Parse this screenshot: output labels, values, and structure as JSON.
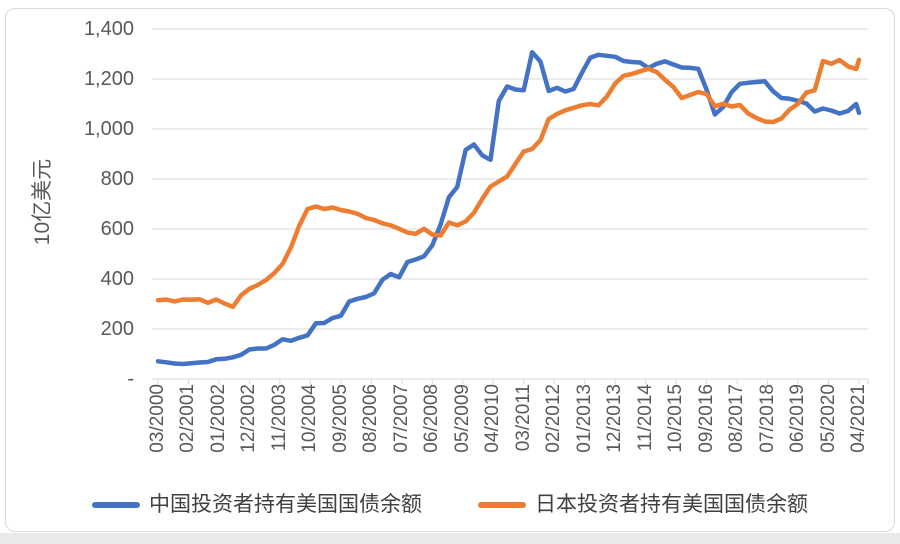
{
  "window": {
    "background": "#ffffff",
    "frame_border_color": "#d9d9d9",
    "bottom_strip_color": "#e9e9e9"
  },
  "chart_data": {
    "type": "line",
    "title": "",
    "xlabel": "",
    "ylabel": "10亿美元",
    "ylim": [
      0,
      1400
    ],
    "grid": true,
    "grid_color": "#d9d9d9",
    "axis_color": "#d9d9d9",
    "tick_label_color": "#595959",
    "legend_position": "bottom",
    "legend_text_color": "#404040",
    "y_ticks": [
      {
        "value": 0,
        "label": "-"
      },
      {
        "value": 200,
        "label": "200"
      },
      {
        "value": 400,
        "label": "400"
      },
      {
        "value": 600,
        "label": "600"
      },
      {
        "value": 800,
        "label": "800"
      },
      {
        "value": 1000,
        "label": "1,000"
      },
      {
        "value": 1200,
        "label": "1,200"
      },
      {
        "value": 1400,
        "label": "1,400"
      }
    ],
    "x_ticks": [
      {
        "month": 0,
        "label": "03/2000"
      },
      {
        "month": 11,
        "label": "02/2001"
      },
      {
        "month": 22,
        "label": "01/2002"
      },
      {
        "month": 33,
        "label": "12/2002"
      },
      {
        "month": 44,
        "label": "11/2003"
      },
      {
        "month": 55,
        "label": "10/2004"
      },
      {
        "month": 66,
        "label": "09/2005"
      },
      {
        "month": 77,
        "label": "08/2006"
      },
      {
        "month": 88,
        "label": "07/2007"
      },
      {
        "month": 99,
        "label": "06/2008"
      },
      {
        "month": 110,
        "label": "05/2009"
      },
      {
        "month": 121,
        "label": "04/2010"
      },
      {
        "month": 132,
        "label": "03/2011"
      },
      {
        "month": 143,
        "label": "02/2012"
      },
      {
        "month": 154,
        "label": "01/2013"
      },
      {
        "month": 165,
        "label": "12/2013"
      },
      {
        "month": 176,
        "label": "11/2014"
      },
      {
        "month": 187,
        "label": "10/2015"
      },
      {
        "month": 198,
        "label": "09/2016"
      },
      {
        "month": 209,
        "label": "08/2017"
      },
      {
        "month": 220,
        "label": "07/2018"
      },
      {
        "month": 231,
        "label": "06/2019"
      },
      {
        "month": 242,
        "label": "05/2020"
      },
      {
        "month": 253,
        "label": "04/2021"
      }
    ],
    "x_total_months": 253,
    "x_start": "03/2000",
    "x_end": "04/2021",
    "sample_months": [
      0,
      3,
      6,
      9,
      12,
      15,
      18,
      21,
      24,
      27,
      30,
      33,
      36,
      39,
      42,
      45,
      48,
      51,
      54,
      57,
      60,
      63,
      66,
      69,
      72,
      75,
      78,
      81,
      84,
      87,
      90,
      93,
      96,
      99,
      102,
      105,
      108,
      111,
      114,
      117,
      120,
      123,
      126,
      129,
      132,
      135,
      138,
      141,
      144,
      147,
      150,
      153,
      156,
      159,
      162,
      165,
      168,
      171,
      174,
      177,
      180,
      183,
      186,
      189,
      192,
      195,
      198,
      201,
      204,
      207,
      210,
      213,
      216,
      219,
      222,
      225,
      228,
      231,
      234,
      237,
      240,
      243,
      246,
      249,
      252,
      253
    ],
    "series": [
      {
        "name": "中国投资者持有美国国债余额",
        "color": "#4472C4",
        "values": [
          71,
          67,
          62,
          60,
          63,
          66,
          68,
          79,
          81,
          87,
          97,
          118,
          122,
          122,
          137,
          159,
          153,
          165,
          175,
          223,
          224,
          244,
          253,
          310,
          321,
          328,
          343,
          397,
          420,
          407,
          468,
          478,
          491,
          535,
          618,
          727,
          768,
          916,
          938,
          895,
          877,
          1112,
          1170,
          1158,
          1155,
          1307,
          1270,
          1152,
          1165,
          1150,
          1160,
          1225,
          1285,
          1297,
          1293,
          1289,
          1272,
          1268,
          1266,
          1244,
          1261,
          1271,
          1258,
          1246,
          1245,
          1241,
          1157,
          1058,
          1088,
          1147,
          1181,
          1185,
          1188,
          1191,
          1151,
          1124,
          1121,
          1113,
          1102,
          1070,
          1082,
          1074,
          1062,
          1072,
          1100,
          1065
        ]
      },
      {
        "name": "日本投资者持有美国国债余额",
        "color": "#ED7D31",
        "values": [
          315,
          318,
          310,
          318,
          317,
          319,
          305,
          318,
          302,
          289,
          335,
          361,
          376,
          396,
          424,
          461,
          527,
          614,
          680,
          690,
          680,
          686,
          676,
          670,
          661,
          644,
          636,
          623,
          615,
          601,
          586,
          581,
          601,
          578,
          574,
          626,
          615,
          630,
          665,
          720,
          770,
          790,
          810,
          860,
          910,
          920,
          955,
          1040,
          1060,
          1075,
          1085,
          1095,
          1100,
          1095,
          1130,
          1182,
          1213,
          1220,
          1231,
          1241,
          1228,
          1197,
          1168,
          1124,
          1136,
          1148,
          1140,
          1091,
          1101,
          1090,
          1096,
          1062,
          1044,
          1030,
          1028,
          1042,
          1078,
          1101,
          1146,
          1155,
          1272,
          1261,
          1276,
          1251,
          1240,
          1277
        ]
      }
    ]
  }
}
